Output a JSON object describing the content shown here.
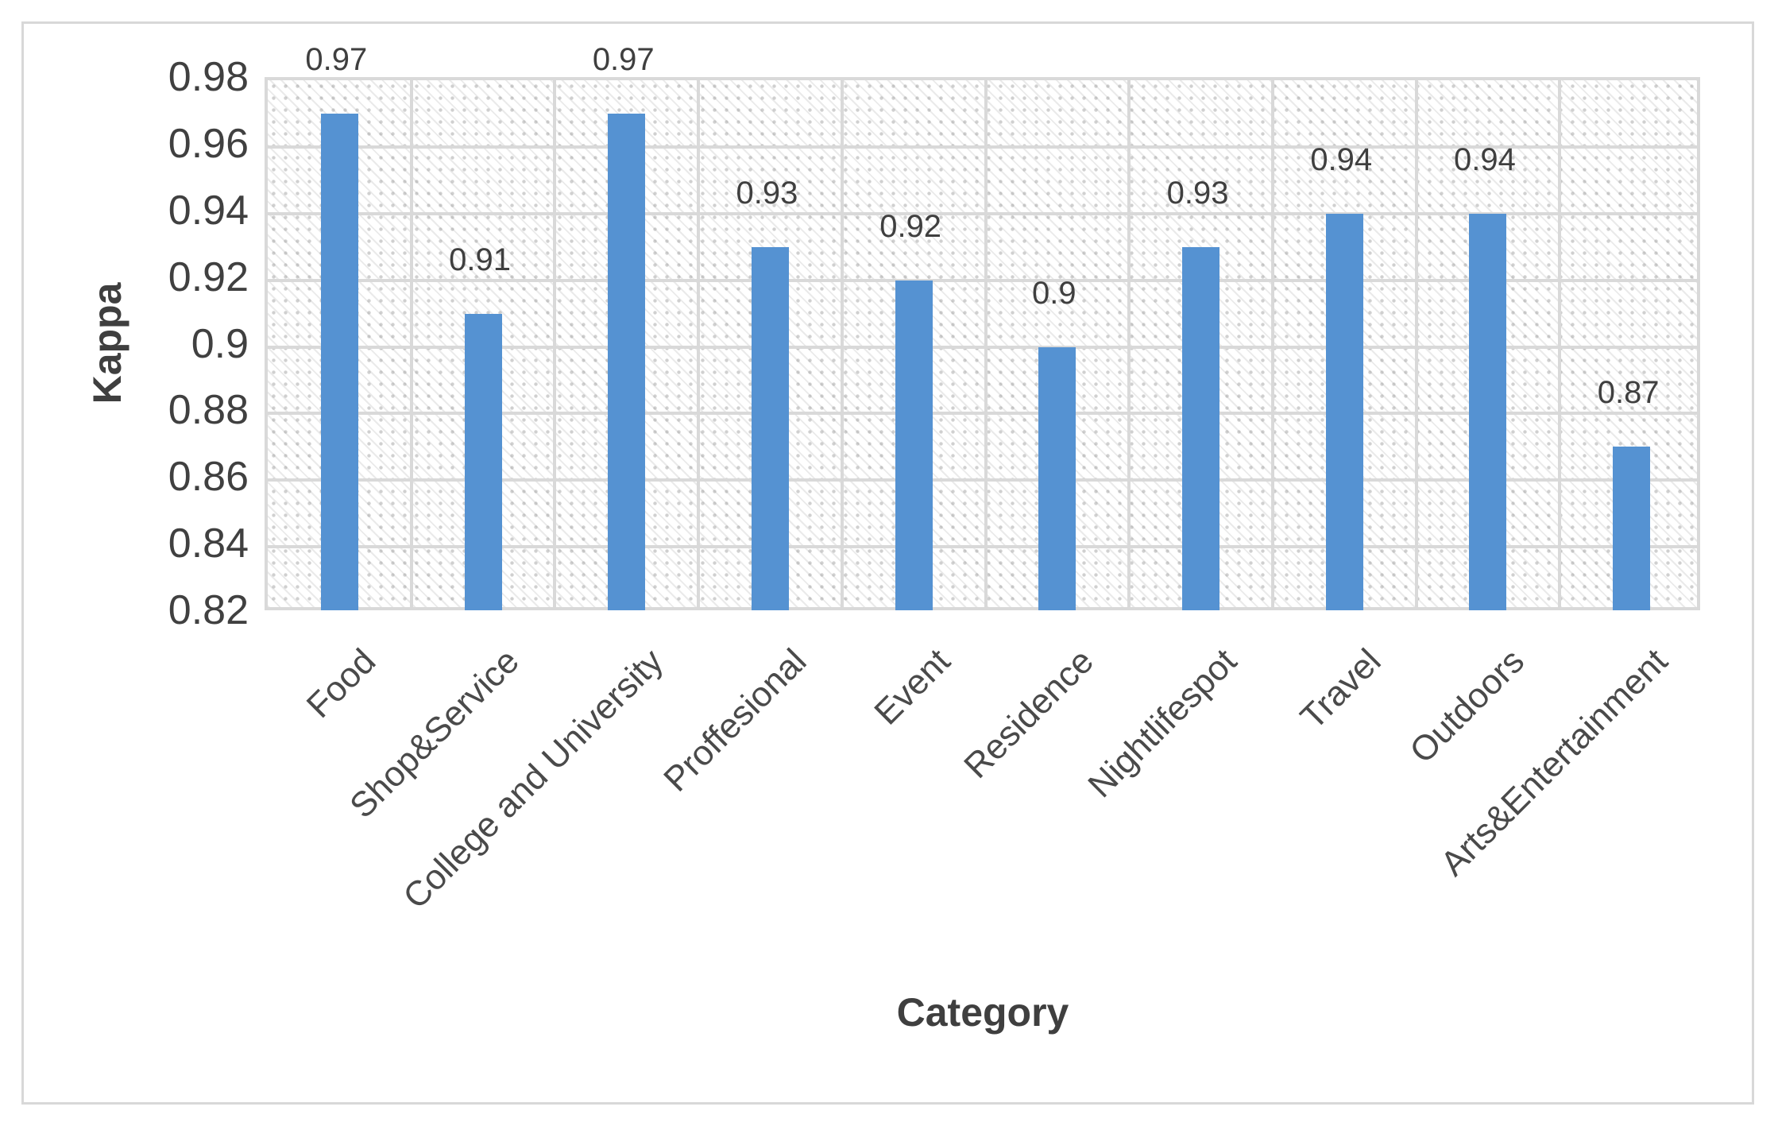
{
  "chart_data": {
    "type": "bar",
    "title": "",
    "xlabel": "Category",
    "ylabel": "Kappa",
    "categories": [
      "Food",
      "Shop&Service",
      "College and University",
      "Proffesional",
      "Event",
      "Residence",
      "Nightlifespot",
      "Travel",
      "Outdoors",
      "Arts&Entertainment"
    ],
    "values": [
      0.97,
      0.91,
      0.97,
      0.93,
      0.92,
      0.9,
      0.93,
      0.94,
      0.94,
      0.87
    ],
    "value_labels": [
      "0.97",
      "0.91",
      "0.97",
      "0.93",
      "0.92",
      "0.9",
      "0.93",
      "0.94",
      "0.94",
      "0.87"
    ],
    "ylim": [
      0.82,
      0.98
    ],
    "ytick_labels": [
      "0.98",
      "0.96",
      "0.94",
      "0.92",
      "0.9",
      "0.88",
      "0.86",
      "0.84",
      "0.82"
    ],
    "grid": "both",
    "legend": "none",
    "colors": {
      "bar": "#5592D2",
      "gridline": "#d9d9d9",
      "text": "#404040",
      "plot_border": "#d9d9d9",
      "figure_border": "#d8d8d8"
    }
  }
}
